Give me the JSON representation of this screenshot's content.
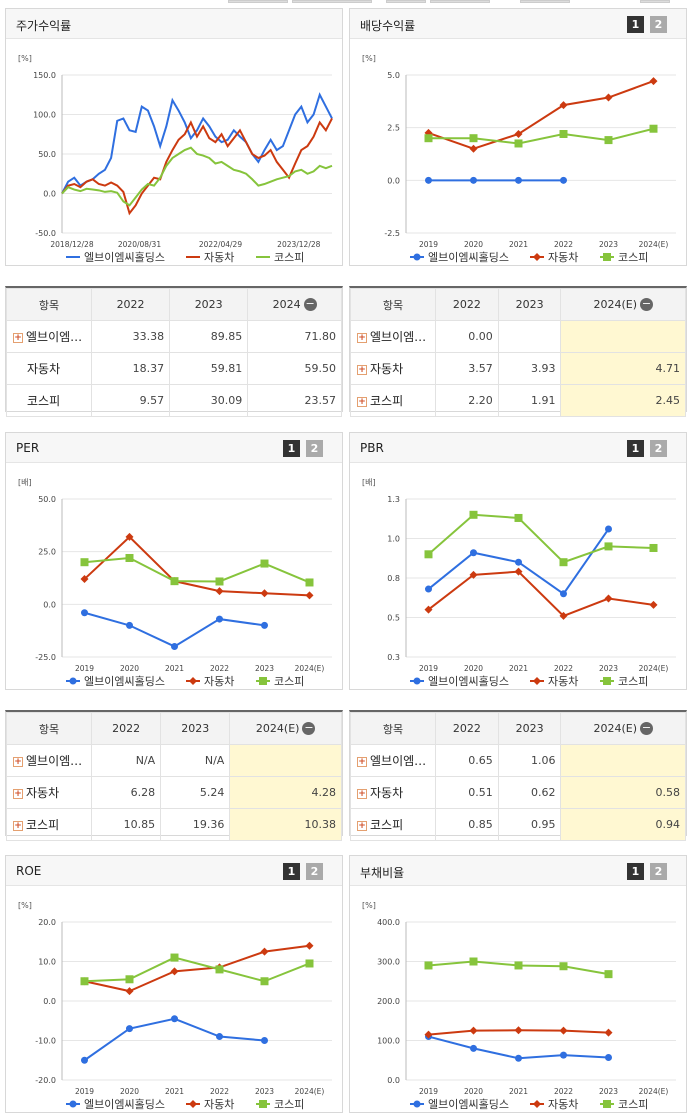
{
  "colors": {
    "blue": "#2f6fe0",
    "red": "#cc3a10",
    "green": "#86c43c",
    "highlight": "#fff8d2"
  },
  "pages": {
    "one": "1",
    "two": "2"
  },
  "icons": {
    "plus": "+",
    "minus": "−"
  },
  "stock": {
    "title": "주가수익률",
    "unit": "[%]",
    "y_ticks": [
      "150.0",
      "100.0",
      "50.0",
      "0.0",
      "-50.0"
    ],
    "x_ticks": [
      "2018/12/28",
      "2020/08/31",
      "2022/04/29",
      "2023/12/28"
    ],
    "legend": [
      "엘브이엠씨홀딩스",
      "자동차",
      "코스피"
    ]
  },
  "dividend": {
    "title": "배당수익률",
    "unit": "[%]",
    "y_ticks": [
      "5.0",
      "2.5",
      "0.0",
      "-2.5"
    ],
    "x_ticks": [
      "2019",
      "2020",
      "2021",
      "2022",
      "2023",
      "2024(E)"
    ],
    "legend": [
      "엘브이엠씨홀딩스",
      "자동차",
      "코스피"
    ]
  },
  "per": {
    "title": "PER",
    "unit": "[배]",
    "y_ticks": [
      "50.0",
      "25.0",
      "0.0",
      "-25.0"
    ],
    "x_ticks": [
      "2019",
      "2020",
      "2021",
      "2022",
      "2023",
      "2024(E)"
    ],
    "legend": [
      "엘브이엠씨홀딩스",
      "자동차",
      "코스피"
    ]
  },
  "pbr": {
    "title": "PBR",
    "unit": "[배]",
    "y_ticks": [
      "1.3",
      "1.0",
      "0.8",
      "0.5",
      "0.3"
    ],
    "x_ticks": [
      "2019",
      "2020",
      "2021",
      "2022",
      "2023",
      "2024(E)"
    ],
    "legend": [
      "엘브이엠씨홀딩스",
      "자동차",
      "코스피"
    ]
  },
  "roe": {
    "title": "ROE",
    "unit": "[%]",
    "y_ticks": [
      "20.0",
      "10.0",
      "0.0",
      "-10.0",
      "-20.0"
    ],
    "x_ticks": [
      "2019",
      "2020",
      "2021",
      "2022",
      "2023",
      "2024(E)"
    ],
    "legend": [
      "엘브이엠씨홀딩스",
      "자동차",
      "코스피"
    ]
  },
  "debt": {
    "title": "부채비율",
    "unit": "[%]",
    "y_ticks": [
      "400.0",
      "300.0",
      "200.0",
      "100.0",
      "0.0"
    ],
    "x_ticks": [
      "2019",
      "2020",
      "2021",
      "2022",
      "2023",
      "2024(E)"
    ],
    "legend": [
      "엘브이엠씨홀딩스",
      "자동차",
      "코스피"
    ]
  },
  "tables": {
    "stock": {
      "headers": [
        "항목",
        "2022",
        "2023",
        "2024"
      ],
      "rows": [
        {
          "name": "엘브이엠…",
          "v": [
            "33.38",
            "89.85",
            "71.80"
          ],
          "plus": true
        },
        {
          "name": "자동차",
          "v": [
            "18.37",
            "59.81",
            "59.50"
          ],
          "plus": false
        },
        {
          "name": "코스피",
          "v": [
            "9.57",
            "30.09",
            "23.57"
          ],
          "plus": false
        }
      ]
    },
    "dividend": {
      "headers": [
        "항목",
        "2022",
        "2023",
        "2024(E)"
      ],
      "rows": [
        {
          "name": "엘브이엠…",
          "v": [
            "0.00",
            "",
            ""
          ],
          "plus": true
        },
        {
          "name": "자동차",
          "v": [
            "3.57",
            "3.93",
            "4.71"
          ],
          "plus": true
        },
        {
          "name": "코스피",
          "v": [
            "2.20",
            "1.91",
            "2.45"
          ],
          "plus": true
        }
      ]
    },
    "per": {
      "headers": [
        "항목",
        "2022",
        "2023",
        "2024(E)"
      ],
      "rows": [
        {
          "name": "엘브이엠…",
          "v": [
            "N/A",
            "N/A",
            ""
          ],
          "plus": true
        },
        {
          "name": "자동차",
          "v": [
            "6.28",
            "5.24",
            "4.28"
          ],
          "plus": true
        },
        {
          "name": "코스피",
          "v": [
            "10.85",
            "19.36",
            "10.38"
          ],
          "plus": true
        }
      ]
    },
    "pbr": {
      "headers": [
        "항목",
        "2022",
        "2023",
        "2024(E)"
      ],
      "rows": [
        {
          "name": "엘브이엠…",
          "v": [
            "0.65",
            "1.06",
            ""
          ],
          "plus": true
        },
        {
          "name": "자동차",
          "v": [
            "0.51",
            "0.62",
            "0.58"
          ],
          "plus": true
        },
        {
          "name": "코스피",
          "v": [
            "0.85",
            "0.95",
            "0.94"
          ],
          "plus": true
        }
      ]
    }
  },
  "chart_data": [
    {
      "id": "stock",
      "type": "line",
      "title": "주가수익률",
      "ylabel": "[%]",
      "ylim": [
        -50,
        150
      ],
      "x_ticks": [
        "2018/12/28",
        "2020/08/31",
        "2022/04/29",
        "2023/12/28"
      ],
      "series": [
        {
          "name": "엘브이엠씨홀딩스",
          "values": [
            0,
            15,
            20,
            10,
            15,
            18,
            25,
            30,
            45,
            92,
            95,
            80,
            78,
            110,
            105,
            85,
            60,
            85,
            118,
            105,
            90,
            70,
            80,
            95,
            85,
            72,
            65,
            68,
            80,
            72,
            65,
            50,
            40,
            55,
            68,
            55,
            60,
            80,
            100,
            110,
            90,
            100,
            125,
            110,
            95
          ]
        },
        {
          "name": "자동차",
          "values": [
            0,
            10,
            12,
            8,
            15,
            18,
            12,
            10,
            14,
            10,
            2,
            -25,
            -15,
            0,
            10,
            20,
            18,
            40,
            55,
            68,
            75,
            90,
            72,
            85,
            70,
            65,
            75,
            60,
            70,
            80,
            65,
            50,
            45,
            48,
            55,
            40,
            30,
            20,
            38,
            55,
            60,
            72,
            90,
            80,
            95
          ]
        },
        {
          "name": "코스피",
          "values": [
            0,
            8,
            5,
            3,
            6,
            5,
            4,
            2,
            3,
            1,
            -10,
            -15,
            -5,
            5,
            12,
            10,
            20,
            35,
            45,
            50,
            55,
            58,
            50,
            48,
            45,
            38,
            40,
            35,
            30,
            28,
            25,
            18,
            10,
            12,
            15,
            18,
            20,
            22,
            28,
            30,
            25,
            28,
            35,
            32,
            35
          ]
        }
      ]
    },
    {
      "id": "dividend",
      "type": "line",
      "title": "배당수익률",
      "ylabel": "[%]",
      "ylim": [
        -2.5,
        5.0
      ],
      "categories": [
        "2019",
        "2020",
        "2021",
        "2022",
        "2023",
        "2024(E)"
      ],
      "series": [
        {
          "name": "엘브이엠씨홀딩스",
          "values": [
            0.0,
            0.0,
            0.0,
            0.0,
            null,
            null
          ]
        },
        {
          "name": "자동차",
          "values": [
            2.25,
            1.5,
            2.2,
            3.57,
            3.93,
            4.71
          ]
        },
        {
          "name": "코스피",
          "values": [
            2.0,
            2.0,
            1.75,
            2.2,
            1.91,
            2.45
          ]
        }
      ]
    },
    {
      "id": "per",
      "type": "line",
      "title": "PER",
      "ylabel": "[배]",
      "ylim": [
        -25,
        50
      ],
      "categories": [
        "2019",
        "2020",
        "2021",
        "2022",
        "2023",
        "2024(E)"
      ],
      "series": [
        {
          "name": "엘브이엠씨홀딩스",
          "values": [
            -4,
            -10,
            -20,
            -7,
            -10,
            null
          ]
        },
        {
          "name": "자동차",
          "values": [
            12,
            32,
            11,
            6.28,
            5.24,
            4.28
          ]
        },
        {
          "name": "코스피",
          "values": [
            20,
            22,
            11,
            10.85,
            19.36,
            10.38
          ]
        }
      ]
    },
    {
      "id": "pbr",
      "type": "line",
      "title": "PBR",
      "ylabel": "[배]",
      "ylim": [
        0.25,
        1.25
      ],
      "categories": [
        "2019",
        "2020",
        "2021",
        "2022",
        "2023",
        "2024(E)"
      ],
      "series": [
        {
          "name": "엘브이엠씨홀딩스",
          "values": [
            0.68,
            0.91,
            0.85,
            0.65,
            1.06,
            null
          ]
        },
        {
          "name": "자동차",
          "values": [
            0.55,
            0.77,
            0.79,
            0.51,
            0.62,
            0.58
          ]
        },
        {
          "name": "코스피",
          "values": [
            0.9,
            1.15,
            1.13,
            0.85,
            0.95,
            0.94
          ]
        }
      ]
    },
    {
      "id": "roe",
      "type": "line",
      "title": "ROE",
      "ylabel": "[%]",
      "ylim": [
        -20,
        20
      ],
      "categories": [
        "2019",
        "2020",
        "2021",
        "2022",
        "2023",
        "2024(E)"
      ],
      "series": [
        {
          "name": "엘브이엠씨홀딩스",
          "values": [
            -15,
            -7,
            -4.5,
            -9,
            -10,
            null
          ]
        },
        {
          "name": "자동차",
          "values": [
            5,
            2.5,
            7.5,
            8.5,
            12.5,
            14
          ]
        },
        {
          "name": "코스피",
          "values": [
            5,
            5.5,
            11,
            8,
            5,
            9.5
          ]
        }
      ]
    },
    {
      "id": "debt",
      "type": "line",
      "title": "부채비율",
      "ylabel": "[%]",
      "ylim": [
        0,
        400
      ],
      "categories": [
        "2019",
        "2020",
        "2021",
        "2022",
        "2023",
        "2024(E)"
      ],
      "series": [
        {
          "name": "엘브이엠씨홀딩스",
          "values": [
            110,
            80,
            55,
            63,
            57,
            null
          ]
        },
        {
          "name": "자동차",
          "values": [
            115,
            125,
            126,
            125,
            120,
            null
          ]
        },
        {
          "name": "코스피",
          "values": [
            290,
            300,
            290,
            288,
            268,
            null
          ]
        }
      ]
    }
  ]
}
